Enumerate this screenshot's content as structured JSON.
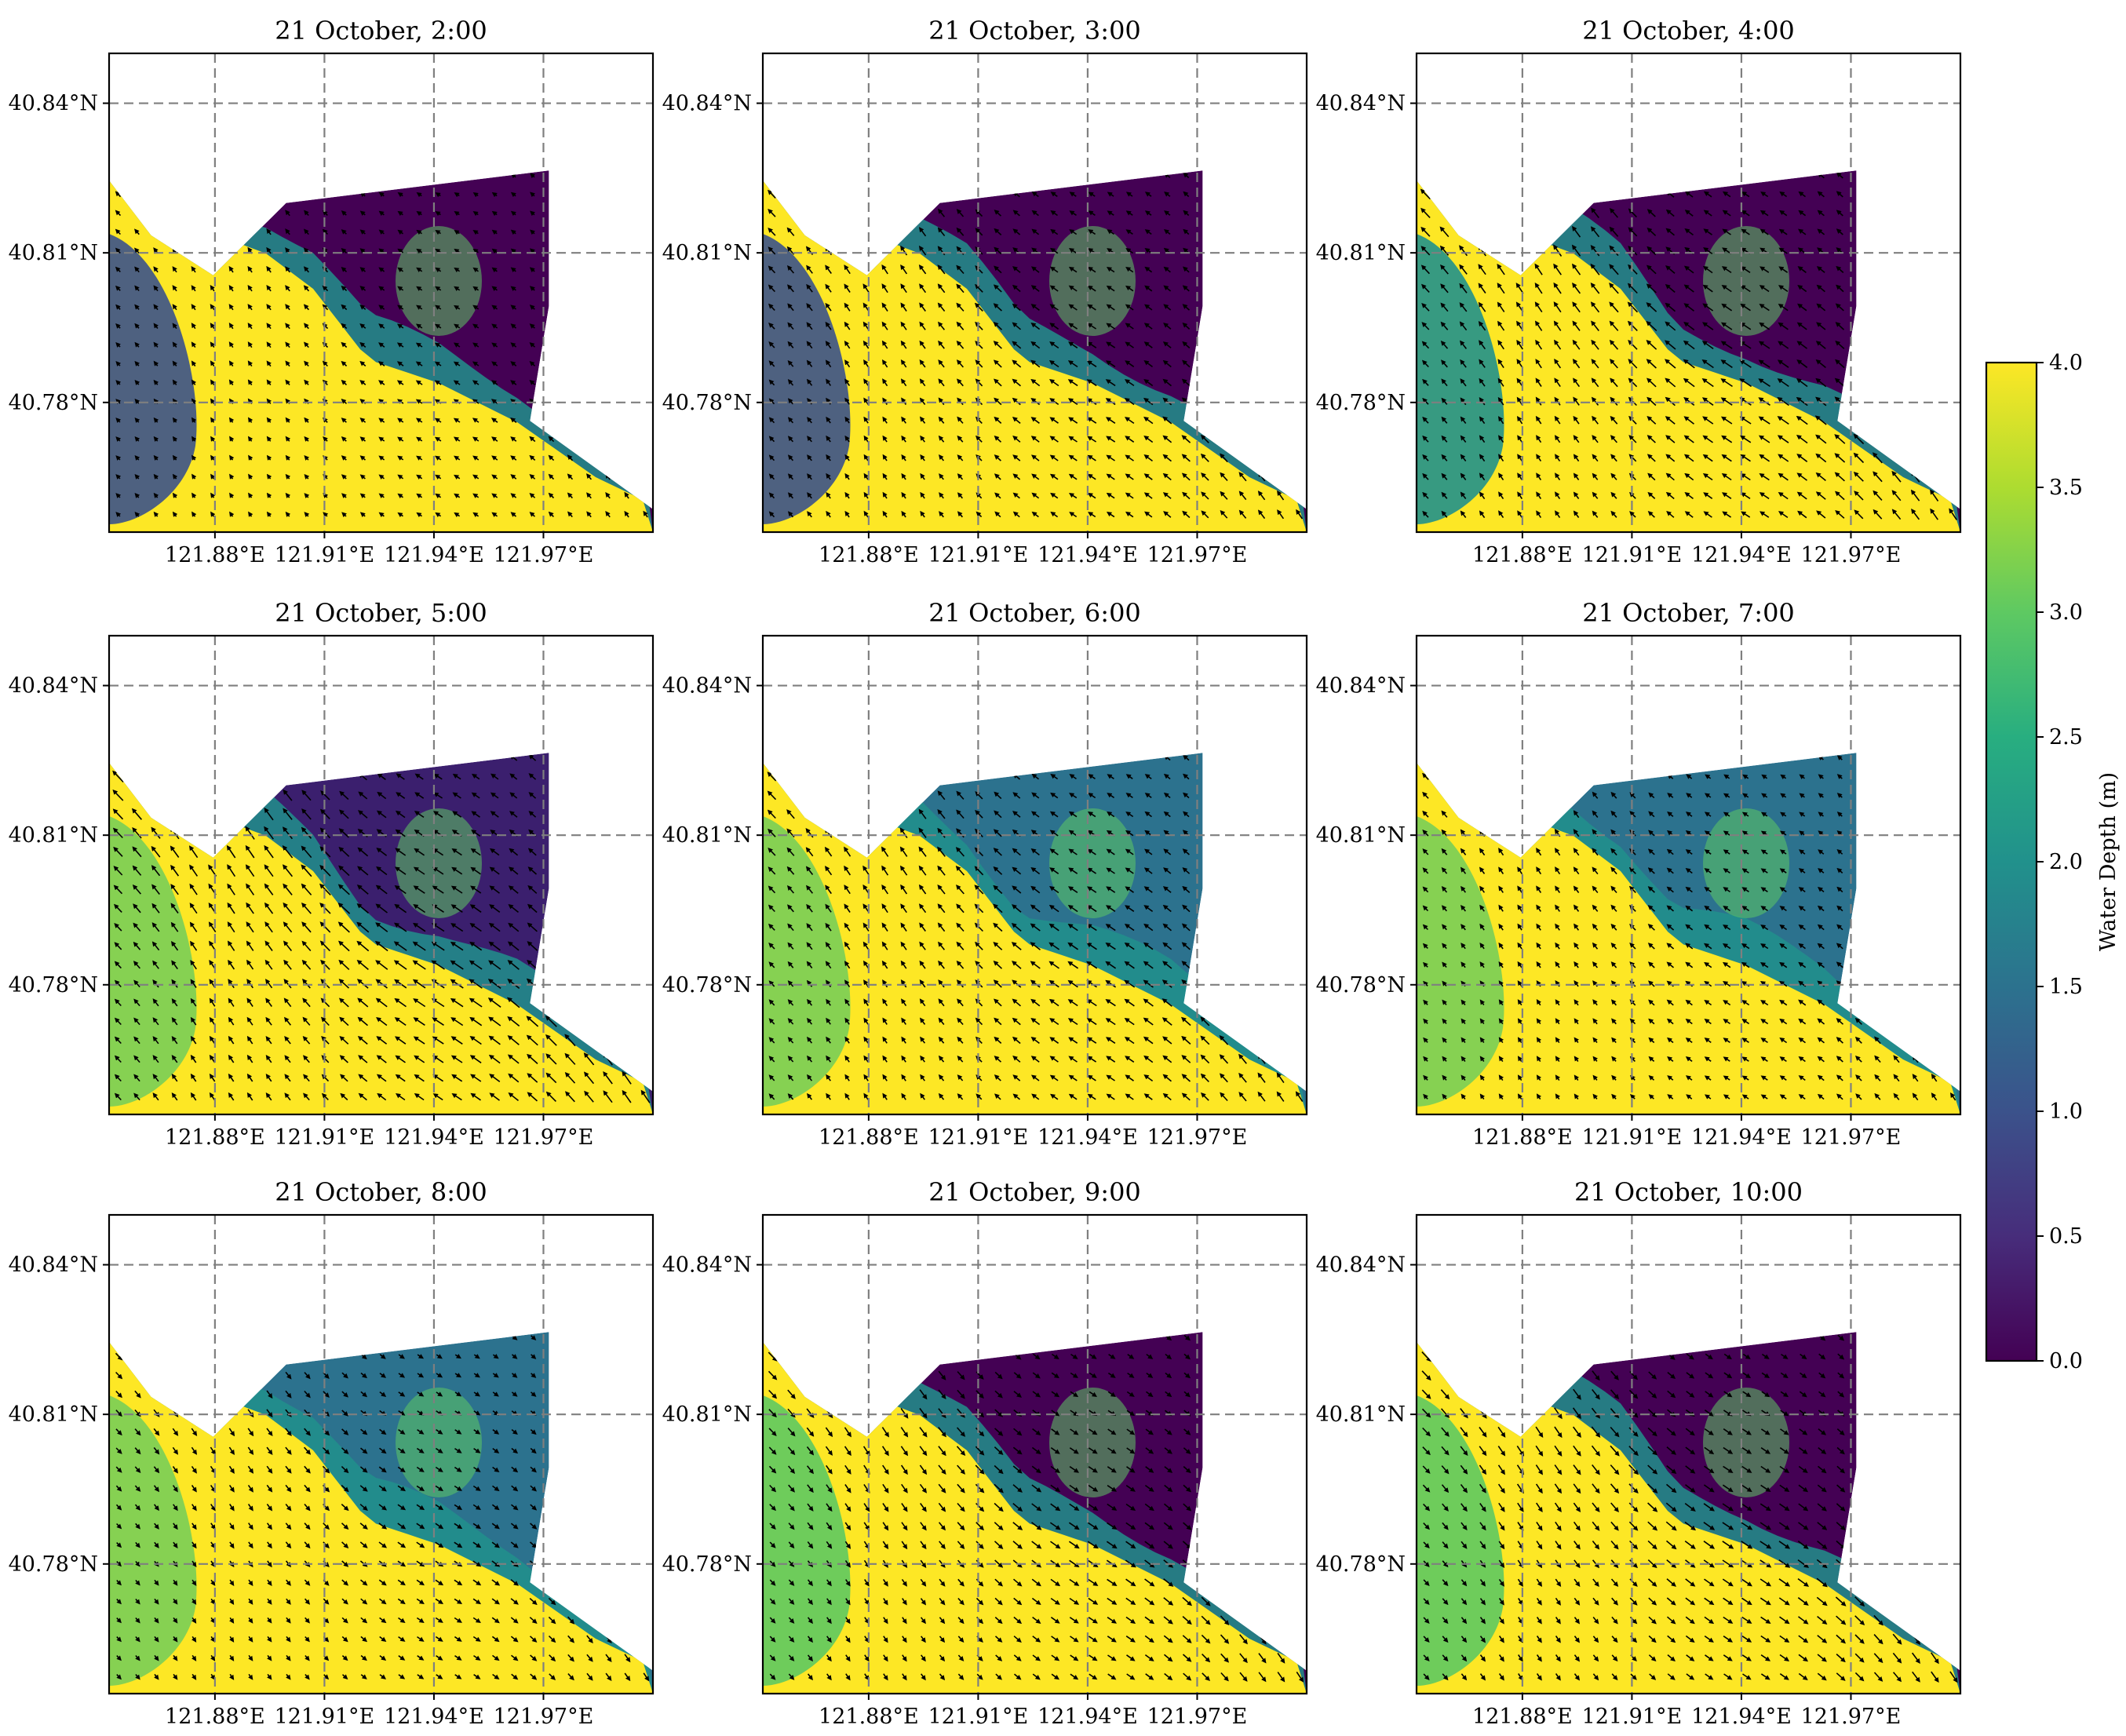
{
  "figure": {
    "panel_titles": [
      "21 October, 2:00",
      "21 October, 3:00",
      "21 October, 4:00",
      "21 October, 5:00",
      "21 October, 6:00",
      "21 October, 7:00",
      "21 October, 8:00",
      "21 October, 9:00",
      "21 October, 10:00"
    ]
  },
  "chart_data": {
    "type": "heatmap",
    "subtype": "spatial water-depth map with current-velocity vectors, 3x3 panel grid",
    "panels": [
      {
        "title": "21 October, 2:00",
        "hour": 2,
        "flow": {
          "strength": 0.25,
          "direction": "weak, mostly northwest"
        }
      },
      {
        "title": "21 October, 3:00",
        "hour": 3,
        "flow": {
          "strength": 0.6,
          "direction": "northwest"
        }
      },
      {
        "title": "21 October, 4:00",
        "hour": 4,
        "flow": {
          "strength": 0.85,
          "direction": "northwest"
        }
      },
      {
        "title": "21 October, 5:00",
        "hour": 5,
        "flow": {
          "strength": 1.0,
          "direction": "northwest"
        }
      },
      {
        "title": "21 October, 6:00",
        "hour": 6,
        "flow": {
          "strength": 0.7,
          "direction": "northwest"
        }
      },
      {
        "title": "21 October, 7:00",
        "hour": 7,
        "flow": {
          "strength": 0.4,
          "direction": "northwest"
        }
      },
      {
        "title": "21 October, 8:00",
        "hour": 8,
        "flow": {
          "strength": 0.45,
          "direction": "southeast"
        }
      },
      {
        "title": "21 October, 9:00",
        "hour": 9,
        "flow": {
          "strength": 0.7,
          "direction": "southeast"
        }
      },
      {
        "title": "21 October, 10:00",
        "hour": 10,
        "flow": {
          "strength": 0.8,
          "direction": "southeast"
        }
      }
    ],
    "x_axis": {
      "ticks": [
        121.88,
        121.91,
        121.94,
        121.97
      ],
      "tick_labels": [
        "121.88°E",
        "121.91°E",
        "121.94°E",
        "121.97°E"
      ],
      "range": [
        121.851,
        122.0
      ]
    },
    "y_axis": {
      "ticks": [
        40.78,
        40.81,
        40.84
      ],
      "tick_labels": [
        "40.78°N",
        "40.81°N",
        "40.84°N"
      ],
      "range": [
        40.754,
        40.85
      ]
    },
    "grid": true,
    "grid_style": "dashed gray",
    "colorbar": {
      "label": "Water Depth (m)",
      "colormap": "viridis",
      "range": [
        0.0,
        4.0
      ],
      "ticks": [
        0.0,
        0.5,
        1.0,
        1.5,
        2.0,
        2.5,
        3.0,
        3.5,
        4.0
      ],
      "tick_labels": [
        "0.0",
        "0.5",
        "1.0",
        "1.5",
        "2.0",
        "2.5",
        "3.0",
        "3.5",
        "4.0"
      ]
    },
    "viridis_stops": [
      "#440154",
      "#472d7b",
      "#3b528b",
      "#2c728e",
      "#21918c",
      "#28ae80",
      "#5ec962",
      "#addc30",
      "#fde725"
    ],
    "domain_outline_lonlat": [
      [
        121.851,
        40.8245
      ],
      [
        121.8625,
        40.8135
      ],
      [
        121.8795,
        40.8055
      ],
      [
        121.8995,
        40.82
      ],
      [
        121.9715,
        40.8265
      ],
      [
        121.9715,
        40.7993
      ],
      [
        121.9663,
        40.7763
      ],
      [
        122.0,
        40.7586
      ],
      [
        122.0,
        40.754
      ],
      [
        121.851,
        40.754
      ]
    ],
    "zone_colors": {
      "deep_water": "#fde725",
      "tidal_flat_wet": "#21918c",
      "tidal_flat_dry": "#440154",
      "arrow": "#000000"
    }
  }
}
